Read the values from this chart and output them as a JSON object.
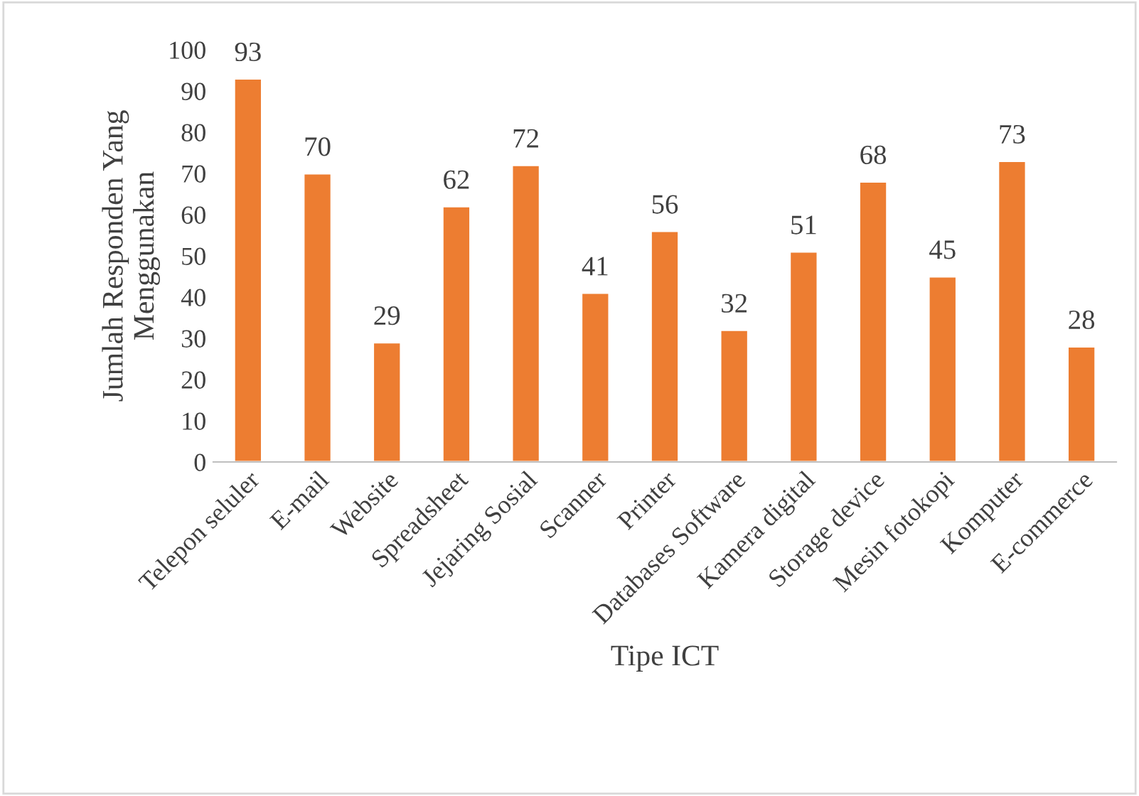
{
  "chart_data": {
    "type": "bar",
    "xlabel": "Tipe ICT",
    "ylabel": "Jumlah Responden Yang\nMenggunakan",
    "categories": [
      "Telepon seluler",
      "E-mail",
      "Website",
      "Spreadsheet",
      "Jejaring Sosial",
      "Scanner",
      "Printer",
      "Databases Software",
      "Kamera digital",
      "Storage device",
      "Mesin fotokopi",
      "Komputer",
      "E-commerce"
    ],
    "values": [
      93,
      70,
      29,
      62,
      72,
      41,
      56,
      32,
      51,
      68,
      45,
      73,
      28
    ],
    "color": "#ed7d31",
    "ylim": [
      0,
      100
    ],
    "yticks": [
      0,
      10,
      20,
      30,
      40,
      50,
      60,
      70,
      80,
      90,
      100
    ],
    "data_labels": true,
    "grid": false,
    "legend": false
  }
}
